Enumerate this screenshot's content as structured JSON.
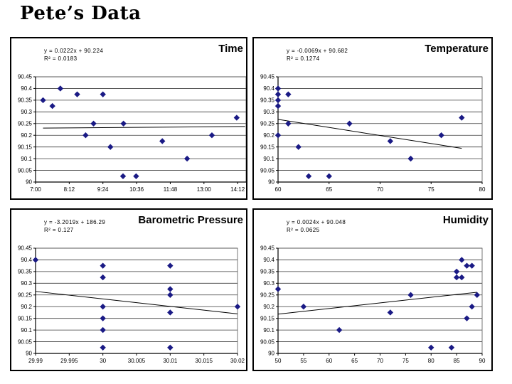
{
  "slide": {
    "title": "Pete’s Data",
    "background": "#ffffff"
  },
  "colors": {
    "marker": "#1A1A85",
    "trendline": "#000000",
    "gridline": "#3a3a3a",
    "plot_border": "#555555",
    "axis": "#000000",
    "panel_border": "#000000",
    "text": "#000000"
  },
  "chart_data": [
    {
      "type": "scatter",
      "title": "Time",
      "equation": "y = 0.0222x + 90.224",
      "r_squared": "R² = 0.0183",
      "legend": "none",
      "grid": "horizontal",
      "x_encoding": "minutes-since-midnight",
      "xlim": [
        420,
        870
      ],
      "ylim": [
        90,
        90.45
      ],
      "x_ticks": [
        {
          "v": 420,
          "label": "7:00"
        },
        {
          "v": 492,
          "label": "8:12"
        },
        {
          "v": 564,
          "label": "9:24"
        },
        {
          "v": 636,
          "label": "10:36"
        },
        {
          "v": 708,
          "label": "11:48"
        },
        {
          "v": 780,
          "label": "13:00"
        },
        {
          "v": 852,
          "label": "14:12"
        }
      ],
      "y_ticks": [
        {
          "v": 90.45,
          "label": "90.45"
        },
        {
          "v": 90.4,
          "label": "90.4"
        },
        {
          "v": 90.35,
          "label": "90.35"
        },
        {
          "v": 90.3,
          "label": "90.3"
        },
        {
          "v": 90.25,
          "label": "90.25"
        },
        {
          "v": 90.2,
          "label": "90.2"
        },
        {
          "v": 90.15,
          "label": "90.15"
        },
        {
          "v": 90.1,
          "label": "90.1"
        },
        {
          "v": 90.05,
          "label": "90.05"
        },
        {
          "v": 90,
          "label": "90"
        }
      ],
      "points": [
        [
          436,
          90.35
        ],
        [
          456,
          90.325
        ],
        [
          473,
          90.4
        ],
        [
          509,
          90.375
        ],
        [
          527,
          90.2
        ],
        [
          544,
          90.25
        ],
        [
          564,
          90.375
        ],
        [
          580,
          90.15
        ],
        [
          607,
          90.025
        ],
        [
          608,
          90.25
        ],
        [
          635,
          90.025
        ],
        [
          691,
          90.175
        ],
        [
          744,
          90.1
        ],
        [
          797,
          90.2
        ],
        [
          850,
          90.275
        ]
      ],
      "trend": {
        "x1": 436,
        "y1": 90.2307,
        "x2": 868,
        "y2": 90.2374
      }
    },
    {
      "type": "scatter",
      "title": "Temperature",
      "equation": "y = -0.0069x + 90.682",
      "r_squared": "R² = 0.1274",
      "legend": "none",
      "grid": "horizontal",
      "xlim": [
        60,
        80
      ],
      "ylim": [
        90,
        90.45
      ],
      "x_ticks": [
        {
          "v": 60,
          "label": "60"
        },
        {
          "v": 65,
          "label": "65"
        },
        {
          "v": 70,
          "label": "70"
        },
        {
          "v": 75,
          "label": "75"
        },
        {
          "v": 80,
          "label": "80"
        }
      ],
      "y_ticks": [
        {
          "v": 90.45,
          "label": "90.45"
        },
        {
          "v": 90.4,
          "label": "90.4"
        },
        {
          "v": 90.35,
          "label": "90.35"
        },
        {
          "v": 90.3,
          "label": "90.3"
        },
        {
          "v": 90.25,
          "label": "90.25"
        },
        {
          "v": 90.2,
          "label": "90.2"
        },
        {
          "v": 90.15,
          "label": "90.15"
        },
        {
          "v": 90.1,
          "label": "90.1"
        },
        {
          "v": 90.05,
          "label": "90.05"
        },
        {
          "v": 90,
          "label": "90"
        }
      ],
      "points": [
        [
          60,
          90.4
        ],
        [
          60,
          90.375
        ],
        [
          60,
          90.35
        ],
        [
          60,
          90.325
        ],
        [
          60,
          90.2
        ],
        [
          61,
          90.375
        ],
        [
          61,
          90.25
        ],
        [
          62,
          90.15
        ],
        [
          63,
          90.025
        ],
        [
          65,
          90.025
        ],
        [
          67,
          90.25
        ],
        [
          71,
          90.175
        ],
        [
          73,
          90.1
        ],
        [
          76,
          90.2
        ],
        [
          78,
          90.275
        ]
      ],
      "trend": {
        "x1": 60,
        "y1": 90.268,
        "x2": 78,
        "y2": 90.144
      }
    },
    {
      "type": "scatter",
      "title": "Barometric Pressure",
      "equation": "y = -3.2019x + 186.29",
      "r_squared": "R² = 0.127",
      "legend": "none",
      "grid": "horizontal",
      "xlim": [
        29.99,
        30.02
      ],
      "ylim": [
        90,
        90.45
      ],
      "x_ticks": [
        {
          "v": 29.99,
          "label": "29.99"
        },
        {
          "v": 29.995,
          "label": "29.995"
        },
        {
          "v": 30,
          "label": "30"
        },
        {
          "v": 30.005,
          "label": "30.005"
        },
        {
          "v": 30.01,
          "label": "30.01"
        },
        {
          "v": 30.015,
          "label": "30.015"
        },
        {
          "v": 30.02,
          "label": "30.02"
        }
      ],
      "y_ticks": [
        {
          "v": 90.45,
          "label": "90.45"
        },
        {
          "v": 90.4,
          "label": "90.4"
        },
        {
          "v": 90.35,
          "label": "90.35"
        },
        {
          "v": 90.3,
          "label": "90.3"
        },
        {
          "v": 90.25,
          "label": "90.25"
        },
        {
          "v": 90.2,
          "label": "90.2"
        },
        {
          "v": 90.15,
          "label": "90.15"
        },
        {
          "v": 90.1,
          "label": "90.1"
        },
        {
          "v": 90.05,
          "label": "90.05"
        },
        {
          "v": 90,
          "label": "90"
        }
      ],
      "points": [
        [
          29.99,
          90.4
        ],
        [
          30,
          90.375
        ],
        [
          30,
          90.325
        ],
        [
          30,
          90.2
        ],
        [
          30,
          90.15
        ],
        [
          30,
          90.1
        ],
        [
          30,
          90.025
        ],
        [
          30.01,
          90.375
        ],
        [
          30.01,
          90.275
        ],
        [
          30.01,
          90.25
        ],
        [
          30.01,
          90.175
        ],
        [
          30.01,
          90.025
        ],
        [
          30.02,
          90.2
        ]
      ],
      "trend": {
        "x1": 29.99,
        "y1": 90.2651,
        "x2": 30.02,
        "y2": 90.169
      }
    },
    {
      "type": "scatter",
      "title": "Humidity",
      "equation": "y = 0.0024x + 90.048",
      "r_squared": "R² = 0.0625",
      "legend": "none",
      "grid": "horizontal",
      "xlim": [
        50,
        90
      ],
      "ylim": [
        90,
        90.45
      ],
      "x_ticks": [
        {
          "v": 50,
          "label": "50"
        },
        {
          "v": 55,
          "label": "55"
        },
        {
          "v": 60,
          "label": "60"
        },
        {
          "v": 65,
          "label": "65"
        },
        {
          "v": 70,
          "label": "70"
        },
        {
          "v": 75,
          "label": "75"
        },
        {
          "v": 80,
          "label": "80"
        },
        {
          "v": 85,
          "label": "85"
        },
        {
          "v": 90,
          "label": "90"
        }
      ],
      "y_ticks": [
        {
          "v": 90.45,
          "label": "90.45"
        },
        {
          "v": 90.4,
          "label": "90.4"
        },
        {
          "v": 90.35,
          "label": "90.35"
        },
        {
          "v": 90.3,
          "label": "90.3"
        },
        {
          "v": 90.25,
          "label": "90.25"
        },
        {
          "v": 90.2,
          "label": "90.2"
        },
        {
          "v": 90.15,
          "label": "90.15"
        },
        {
          "v": 90.1,
          "label": "90.1"
        },
        {
          "v": 90.05,
          "label": "90.05"
        },
        {
          "v": 90,
          "label": "90"
        }
      ],
      "points": [
        [
          50,
          90.275
        ],
        [
          55,
          90.2
        ],
        [
          62,
          90.1
        ],
        [
          72,
          90.175
        ],
        [
          76,
          90.25
        ],
        [
          80,
          90.025
        ],
        [
          84,
          90.025
        ],
        [
          85,
          90.35
        ],
        [
          85,
          90.325
        ],
        [
          86,
          90.4
        ],
        [
          86,
          90.325
        ],
        [
          87,
          90.375
        ],
        [
          87,
          90.15
        ],
        [
          88,
          90.375
        ],
        [
          88,
          90.2
        ],
        [
          89,
          90.25
        ]
      ],
      "trend": {
        "x1": 50,
        "y1": 90.168,
        "x2": 89,
        "y2": 90.2616
      }
    }
  ]
}
